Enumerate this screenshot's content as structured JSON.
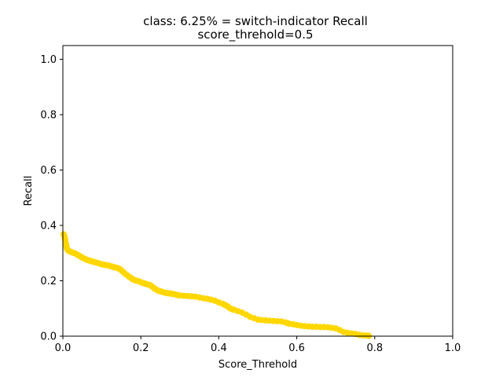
{
  "chart_data": {
    "type": "line",
    "title": "class: 6.25% = switch-indicator Recall",
    "subtitle": "score_threhold=0.5",
    "xlabel": "Score_Threhold",
    "ylabel": "Recall",
    "xlim": [
      0.0,
      1.0
    ],
    "ylim": [
      0.0,
      1.05
    ],
    "xticks": [
      "0.0",
      "0.2",
      "0.4",
      "0.6",
      "0.8",
      "1.0"
    ],
    "yticks": [
      "0.0",
      "0.2",
      "0.4",
      "0.6",
      "0.8",
      "1.0"
    ],
    "grid": false,
    "marker": "circle",
    "color": "#FFD700",
    "series": [
      {
        "points": [
          [
            0.002,
            0.368
          ],
          [
            0.004,
            0.362
          ],
          [
            0.005,
            0.355
          ],
          [
            0.006,
            0.348
          ],
          [
            0.007,
            0.34
          ],
          [
            0.008,
            0.332
          ],
          [
            0.009,
            0.325
          ],
          [
            0.01,
            0.318
          ],
          [
            0.012,
            0.312
          ],
          [
            0.015,
            0.308
          ],
          [
            0.02,
            0.305
          ],
          [
            0.025,
            0.302
          ],
          [
            0.03,
            0.3
          ],
          [
            0.035,
            0.296
          ],
          [
            0.04,
            0.292
          ],
          [
            0.045,
            0.288
          ],
          [
            0.05,
            0.284
          ],
          [
            0.055,
            0.28
          ],
          [
            0.06,
            0.277
          ],
          [
            0.065,
            0.274
          ],
          [
            0.07,
            0.272
          ],
          [
            0.075,
            0.27
          ],
          [
            0.08,
            0.268
          ],
          [
            0.085,
            0.266
          ],
          [
            0.09,
            0.264
          ],
          [
            0.095,
            0.262
          ],
          [
            0.1,
            0.26
          ],
          [
            0.105,
            0.258
          ],
          [
            0.11,
            0.257
          ],
          [
            0.115,
            0.256
          ],
          [
            0.12,
            0.254
          ],
          [
            0.125,
            0.252
          ],
          [
            0.13,
            0.25
          ],
          [
            0.135,
            0.248
          ],
          [
            0.14,
            0.246
          ],
          [
            0.145,
            0.243
          ],
          [
            0.15,
            0.238
          ],
          [
            0.155,
            0.232
          ],
          [
            0.16,
            0.225
          ],
          [
            0.165,
            0.22
          ],
          [
            0.17,
            0.215
          ],
          [
            0.175,
            0.21
          ],
          [
            0.18,
            0.205
          ],
          [
            0.185,
            0.202
          ],
          [
            0.19,
            0.2
          ],
          [
            0.195,
            0.198
          ],
          [
            0.2,
            0.195
          ],
          [
            0.205,
            0.192
          ],
          [
            0.21,
            0.19
          ],
          [
            0.215,
            0.188
          ],
          [
            0.22,
            0.186
          ],
          [
            0.225,
            0.183
          ],
          [
            0.23,
            0.178
          ],
          [
            0.235,
            0.172
          ],
          [
            0.24,
            0.168
          ],
          [
            0.245,
            0.164
          ],
          [
            0.25,
            0.162
          ],
          [
            0.255,
            0.16
          ],
          [
            0.26,
            0.158
          ],
          [
            0.265,
            0.156
          ],
          [
            0.27,
            0.155
          ],
          [
            0.275,
            0.154
          ],
          [
            0.28,
            0.153
          ],
          [
            0.285,
            0.152
          ],
          [
            0.29,
            0.15
          ],
          [
            0.295,
            0.148
          ],
          [
            0.3,
            0.147
          ],
          [
            0.31,
            0.146
          ],
          [
            0.32,
            0.145
          ],
          [
            0.33,
            0.144
          ],
          [
            0.34,
            0.143
          ],
          [
            0.35,
            0.14
          ],
          [
            0.36,
            0.137
          ],
          [
            0.37,
            0.135
          ],
          [
            0.38,
            0.132
          ],
          [
            0.39,
            0.128
          ],
          [
            0.4,
            0.122
          ],
          [
            0.41,
            0.117
          ],
          [
            0.415,
            0.113
          ],
          [
            0.42,
            0.11
          ],
          [
            0.425,
            0.105
          ],
          [
            0.43,
            0.1
          ],
          [
            0.435,
            0.097
          ],
          [
            0.44,
            0.095
          ],
          [
            0.45,
            0.09
          ],
          [
            0.46,
            0.085
          ],
          [
            0.47,
            0.078
          ],
          [
            0.48,
            0.07
          ],
          [
            0.49,
            0.065
          ],
          [
            0.5,
            0.06
          ],
          [
            0.51,
            0.058
          ],
          [
            0.52,
            0.057
          ],
          [
            0.53,
            0.056
          ],
          [
            0.54,
            0.055
          ],
          [
            0.55,
            0.054
          ],
          [
            0.56,
            0.053
          ],
          [
            0.57,
            0.05
          ],
          [
            0.575,
            0.048
          ],
          [
            0.58,
            0.045
          ],
          [
            0.59,
            0.043
          ],
          [
            0.6,
            0.04
          ],
          [
            0.61,
            0.038
          ],
          [
            0.62,
            0.036
          ],
          [
            0.63,
            0.035
          ],
          [
            0.64,
            0.034
          ],
          [
            0.65,
            0.034
          ],
          [
            0.66,
            0.033
          ],
          [
            0.67,
            0.033
          ],
          [
            0.68,
            0.032
          ],
          [
            0.69,
            0.03
          ],
          [
            0.7,
            0.028
          ],
          [
            0.71,
            0.022
          ],
          [
            0.72,
            0.015
          ],
          [
            0.73,
            0.012
          ],
          [
            0.74,
            0.01
          ],
          [
            0.75,
            0.008
          ],
          [
            0.76,
            0.005
          ],
          [
            0.77,
            0.003
          ],
          [
            0.78,
            0.002
          ],
          [
            0.785,
            0.001
          ]
        ]
      }
    ]
  }
}
